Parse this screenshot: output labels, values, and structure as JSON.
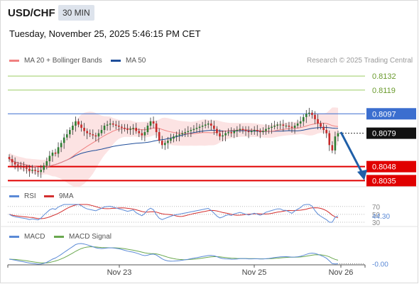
{
  "header": {
    "symbol": "USD/CHF",
    "interval": "30 MIN",
    "timestamp": "Tuesday, November 25, 2025 5:46:15 PM CET",
    "source": "Research © 2025 Trading Central"
  },
  "legend": {
    "ma20": "MA 20 + Bollinger Bands",
    "ma50": "MA 50",
    "rsi": "RSI",
    "rsi_ma": "9MA",
    "macd": "MACD",
    "macd_signal": "MACD Signal"
  },
  "colors": {
    "ma20": "#f08080",
    "ma50": "#1f4e9a",
    "bollinger_fill": "#fcdede",
    "bullish_candle": "#2e7d32",
    "bearish_candle": "#c62828",
    "resistance": "#9ccc65",
    "pivot": "#3b6ecf",
    "support": "#e00000",
    "arrow": "#1f5fa8",
    "rsi": "#5b8ad6",
    "rsi_ma": "#d32f2f",
    "macd": "#5b8ad6",
    "macd_signal": "#6aa84f"
  },
  "chart_data": [
    {
      "type": "candlestick",
      "name": "price",
      "ylim": [
        0.803,
        0.814
      ],
      "levels": [
        {
          "value": 0.8132,
          "label": "0.8132",
          "kind": "resistance"
        },
        {
          "value": 0.8119,
          "label": "0.8119",
          "kind": "resistance"
        },
        {
          "value": 0.8097,
          "label": "0.8097",
          "kind": "pivot"
        },
        {
          "value": 0.8048,
          "label": "0.8048",
          "kind": "support"
        },
        {
          "value": 0.8035,
          "label": "0.8035",
          "kind": "support"
        }
      ],
      "last_price": {
        "value": 0.8079,
        "label": "0.8079"
      },
      "forecast": {
        "from": 0.808,
        "to": 0.8038
      },
      "closes": [
        0.8055,
        0.8052,
        0.805,
        0.8049,
        0.8048,
        0.8047,
        0.8046,
        0.8044,
        0.8045,
        0.8044,
        0.8043,
        0.8045,
        0.8049,
        0.8053,
        0.8058,
        0.8061,
        0.806,
        0.8066,
        0.807,
        0.8075,
        0.8078,
        0.8082,
        0.8086,
        0.809,
        0.8087,
        0.8084,
        0.8081,
        0.8079,
        0.8078,
        0.8077,
        0.8076,
        0.8079,
        0.8082,
        0.8086,
        0.8087,
        0.8088,
        0.8087,
        0.8086,
        0.8085,
        0.8084,
        0.8083,
        0.8082,
        0.8083,
        0.8084,
        0.8081,
        0.8079,
        0.8077,
        0.808,
        0.8086,
        0.809,
        0.8088,
        0.808,
        0.8072,
        0.8068,
        0.807,
        0.8072,
        0.8074,
        0.8076,
        0.8077,
        0.8078,
        0.8079,
        0.808,
        0.8081,
        0.8082,
        0.8083,
        0.8084,
        0.8085,
        0.8086,
        0.8087,
        0.8088,
        0.8086,
        0.8083,
        0.8079,
        0.8076,
        0.8077,
        0.8079,
        0.808,
        0.8079,
        0.8081,
        0.8082,
        0.8083,
        0.8082,
        0.8081,
        0.808,
        0.8081,
        0.8082,
        0.8081,
        0.808,
        0.8081,
        0.8083,
        0.8084,
        0.8085,
        0.8086,
        0.8087,
        0.8087,
        0.8086,
        0.8086,
        0.8085,
        0.8084,
        0.8086,
        0.8088,
        0.809,
        0.8094,
        0.8097,
        0.8098,
        0.8096,
        0.8092,
        0.8088,
        0.8085,
        0.8082,
        0.8079,
        0.8068,
        0.8063,
        0.8076,
        0.8079
      ],
      "x_ticks": [
        "Nov 23",
        "Nov 25",
        "Nov 26"
      ]
    },
    {
      "type": "line",
      "name": "rsi",
      "ylim": [
        30,
        75
      ],
      "tick_labels": [
        "70",
        "50",
        "30"
      ],
      "current_label": "44.30"
    },
    {
      "type": "line",
      "name": "macd",
      "tick_labels": [
        "-0.00"
      ]
    }
  ]
}
